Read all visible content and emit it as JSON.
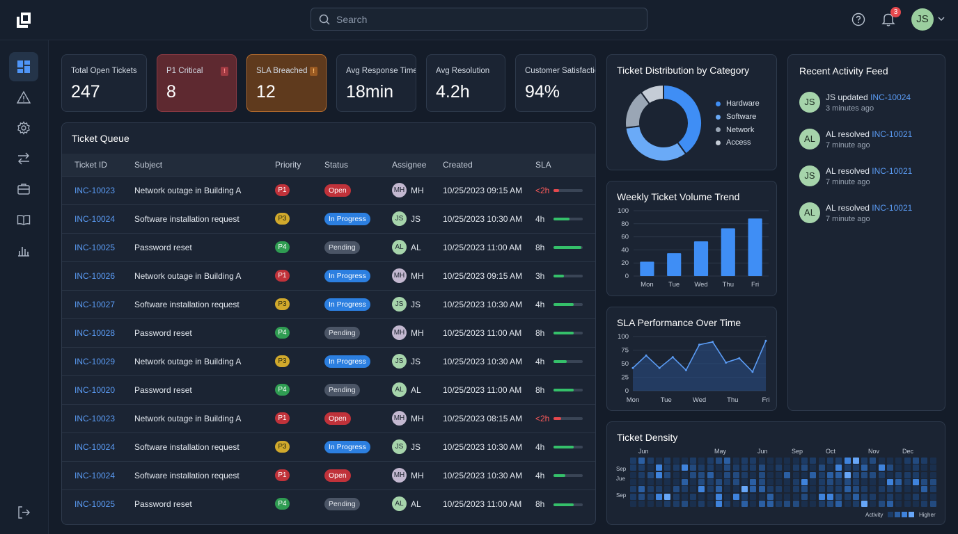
{
  "search": {
    "placeholder": "Search"
  },
  "header": {
    "notif_count": "3",
    "user_initials": "JS"
  },
  "kpis": [
    {
      "label": "Total Open Tickets",
      "value": "247"
    },
    {
      "label": "P1 Critical",
      "value": "8",
      "flag": "!"
    },
    {
      "label": "SLA Breached",
      "value": "12",
      "flag": "!"
    },
    {
      "label": "Avg Response Time",
      "value": "18min"
    },
    {
      "label": "Avg Resolution",
      "value": "4.2h"
    },
    {
      "label": "Customer Satisfaction",
      "value": "94%"
    }
  ],
  "queue": {
    "title": "Ticket Queue",
    "columns": [
      "Ticket ID",
      "Subject",
      "Priority",
      "Status",
      "Assignee",
      "Created",
      "SLA"
    ],
    "rows": [
      {
        "id": "INC-10023",
        "subject": "Network outage in Building A",
        "priority": "P1",
        "status": "Open",
        "assignee": "MH",
        "created": "10/25/2023 09:15 AM",
        "sla": "<2h",
        "sla_fill": 0.2,
        "sla_color": "#e5484d"
      },
      {
        "id": "INC-10024",
        "subject": "Software installation request",
        "priority": "P3",
        "status": "In Progress",
        "assignee": "JS",
        "created": "10/25/2023 10:30 AM",
        "sla": "4h",
        "sla_fill": 0.55,
        "sla_color": "#35c06a"
      },
      {
        "id": "INC-10025",
        "subject": "Password reset",
        "priority": "P4",
        "status": "Pending",
        "assignee": "AL",
        "created": "10/25/2023 11:00 AM",
        "sla": "8h",
        "sla_fill": 0.95,
        "sla_color": "#35c06a"
      },
      {
        "id": "INC-10026",
        "subject": "Network outage in Building A",
        "priority": "P1",
        "status": "In Progress",
        "assignee": "MH",
        "created": "10/25/2023 09:15 AM",
        "sla": "3h",
        "sla_fill": 0.35,
        "sla_color": "#35c06a"
      },
      {
        "id": "INC-10027",
        "subject": "Software installation request",
        "priority": "P3",
        "status": "In Progress",
        "assignee": "JS",
        "created": "10/25/2023 10:30 AM",
        "sla": "4h",
        "sla_fill": 0.7,
        "sla_color": "#35c06a"
      },
      {
        "id": "INC-10028",
        "subject": "Password reset",
        "priority": "P4",
        "status": "Pending",
        "assignee": "MH",
        "created": "10/25/2023 11:00 AM",
        "sla": "8h",
        "sla_fill": 0.7,
        "sla_color": "#35c06a"
      },
      {
        "id": "INC-10029",
        "subject": "Network outage in Building A",
        "priority": "P3",
        "status": "In Progress",
        "assignee": "JS",
        "created": "10/25/2023 10:30 AM",
        "sla": "4h",
        "sla_fill": 0.45,
        "sla_color": "#35c06a"
      },
      {
        "id": "INC-10020",
        "subject": "Password reset",
        "priority": "P4",
        "status": "Pending",
        "assignee": "AL",
        "created": "10/25/2023 11:00 AM",
        "sla": "8h",
        "sla_fill": 0.7,
        "sla_color": "#35c06a"
      },
      {
        "id": "INC-10023",
        "subject": "Network outage in Building A",
        "priority": "P1",
        "status": "Open",
        "assignee": "MH",
        "created": "10/25/2023 08:15 AM",
        "sla": "<2h",
        "sla_fill": 0.25,
        "sla_color": "#e5484d"
      },
      {
        "id": "INC-10024",
        "subject": "Software installation request",
        "priority": "P3",
        "status": "In Progress",
        "assignee": "JS",
        "created": "10/25/2023 10:30 AM",
        "sla": "4h",
        "sla_fill": 0.7,
        "sla_color": "#35c06a"
      },
      {
        "id": "INC-10024",
        "subject": "Software installation request",
        "priority": "P1",
        "status": "Open",
        "assignee": "MH",
        "created": "10/25/2023 10:30 AM",
        "sla": "4h",
        "sla_fill": 0.4,
        "sla_color": "#35c06a"
      },
      {
        "id": "INC-10025",
        "subject": "Password reset",
        "priority": "P4",
        "status": "Pending",
        "assignee": "AL",
        "created": "10/25/2023 11:00 AM",
        "sla": "8h",
        "sla_fill": 0.7,
        "sla_color": "#35c06a"
      }
    ]
  },
  "chart_data": [
    {
      "type": "pie",
      "title": "Ticket Distribution by Category",
      "categories": [
        "Hardware",
        "Software",
        "Network",
        "Access"
      ],
      "values": [
        40,
        33,
        17,
        10
      ],
      "colors": [
        "#3f8ef5",
        "#6aaaf7",
        "#9aa6b5",
        "#c5ccd6"
      ],
      "legend": "right"
    },
    {
      "type": "bar",
      "title": "Weekly Ticket Volume Trend",
      "categories": [
        "Mon",
        "Tue",
        "Wed",
        "Thu",
        "Fri"
      ],
      "values": [
        22,
        35,
        53,
        73,
        88
      ],
      "ylim": [
        0,
        100
      ],
      "yticks": [
        "100",
        "80",
        "60",
        "40",
        "20",
        "0"
      ],
      "color": "#3f8ef5",
      "grid": true
    },
    {
      "type": "area",
      "title": "SLA Performance Over Time",
      "x_labels": [
        "Mon",
        "Tue",
        "Wed",
        "Thu",
        "Fri"
      ],
      "values": [
        42,
        65,
        42,
        62,
        38,
        85,
        90,
        52,
        60,
        35,
        92
      ],
      "ylim": [
        0,
        100
      ],
      "yticks": [
        "100",
        "75",
        "50",
        "25",
        "0"
      ],
      "color": "#5b9cf5",
      "grid": true
    },
    {
      "type": "heatmap",
      "title": "Ticket Density",
      "months": [
        "Jun",
        "May",
        "Jun",
        "Sep",
        "Oct",
        "Nov",
        "Dec"
      ],
      "row_labels": [
        "Sep",
        "Jue",
        "Sep"
      ],
      "legend_low": "Activity",
      "legend_high": "Higher"
    }
  ],
  "feed": {
    "title": "Recent Activity Feed",
    "items": [
      {
        "initials": "JS",
        "text": "JS updated ",
        "link": "INC-10024",
        "time": "3 minutes ago"
      },
      {
        "initials": "AL",
        "text": "AL resolved ",
        "link": "INC-10021",
        "time": "7 minute ago"
      },
      {
        "initials": "JS",
        "text": "AL resolved ",
        "link": "INC-10021",
        "time": "7 minute ago"
      },
      {
        "initials": "AL",
        "text": "AL resolved ",
        "link": "INC-10021",
        "time": "7 minute ago"
      }
    ]
  }
}
